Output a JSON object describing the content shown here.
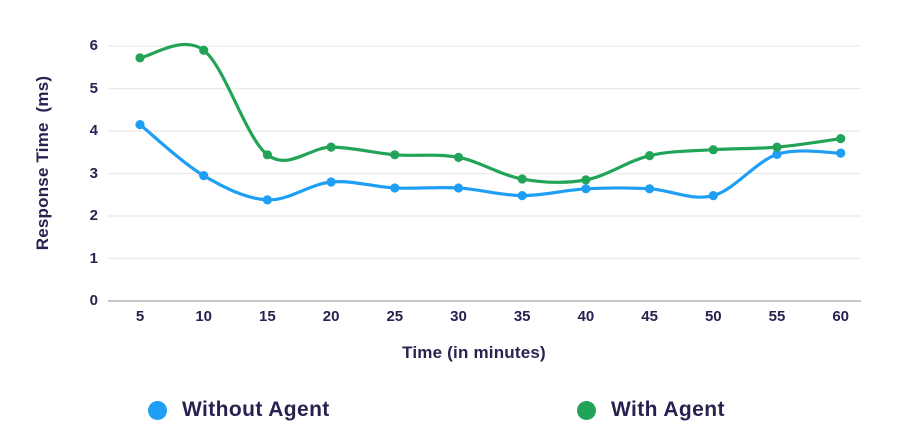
{
  "chart_data": {
    "type": "line",
    "title": "",
    "xlabel": "Time (in minutes)",
    "ylabel": "Response Time  (ms)",
    "x": [
      5,
      10,
      15,
      20,
      25,
      30,
      35,
      40,
      45,
      50,
      55,
      60
    ],
    "xtick_labels": [
      "5",
      "10",
      "15",
      "20",
      "25",
      "30",
      "35",
      "40",
      "45",
      "50",
      "55",
      "60"
    ],
    "yticks": [
      0,
      1,
      2,
      3,
      4,
      5,
      6
    ],
    "ylim": [
      0,
      6
    ],
    "grid": true,
    "smooth": true,
    "legend_position": "bottom",
    "series": [
      {
        "name": "Without Agent",
        "color": "#1E9EF4",
        "values": [
          4.15,
          2.95,
          2.38,
          2.8,
          2.66,
          2.66,
          2.48,
          2.64,
          2.64,
          2.48,
          3.45,
          3.48
        ]
      },
      {
        "name": "With Agent",
        "color": "#22A458",
        "values": [
          5.72,
          5.9,
          3.44,
          3.62,
          3.44,
          3.38,
          2.87,
          2.85,
          3.42,
          3.56,
          3.62,
          3.82
        ]
      }
    ]
  },
  "colors": {
    "text": "#2A2150",
    "grid": "#EAEAEA",
    "axis_line": "#C6C6C6",
    "background": "#FFFFFF"
  }
}
